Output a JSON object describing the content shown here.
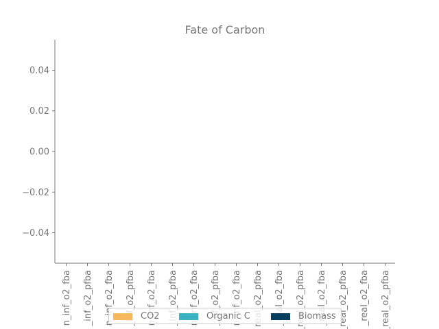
{
  "chart_data": {
    "type": "bar",
    "title": "Fate of Carbon",
    "xlabel": "",
    "ylabel": "",
    "categories": [
      "n_inf_o2_fba",
      "_inf_o2_pfba",
      "n_inf_o2_fba",
      "_inf_o2_pfba",
      "n_inf_o2_fba",
      "_inf_o2_pfba",
      "n_inf_o2_fba",
      "_inf_o2_pfba",
      "n_inf_o2_fba",
      "real_o2_pfba",
      "_real_o2_fba",
      "_real_o2_pfba",
      "_real_o2_fba",
      "_real_o2_pfba",
      "_real_o2_fba",
      "_real_o2_pfba"
    ],
    "series": [
      {
        "name": "CO2",
        "color": "#f8b95e",
        "values": [
          0,
          0,
          0,
          0,
          0,
          0,
          0,
          0,
          0,
          0,
          0,
          0,
          0,
          0,
          0,
          0
        ]
      },
      {
        "name": "Organic C",
        "color": "#3bb0bf",
        "values": [
          0,
          0,
          0,
          0,
          0,
          0,
          0,
          0,
          0,
          0,
          0,
          0,
          0,
          0,
          0,
          0
        ]
      },
      {
        "name": "Biomass",
        "color": "#063e5e",
        "values": [
          0,
          0,
          0,
          0,
          0,
          0,
          0,
          0,
          0,
          0,
          0,
          0,
          0,
          0,
          0,
          0
        ]
      }
    ],
    "ylim": [
      -0.055,
      0.055
    ],
    "yticks": [
      0.04,
      0.02,
      0.0,
      -0.02,
      -0.04
    ],
    "ytick_labels": [
      "0.04",
      "0.02",
      "0.00",
      "−0.02",
      "−0.04"
    ],
    "grid": false,
    "legend_position": "lower-center"
  }
}
